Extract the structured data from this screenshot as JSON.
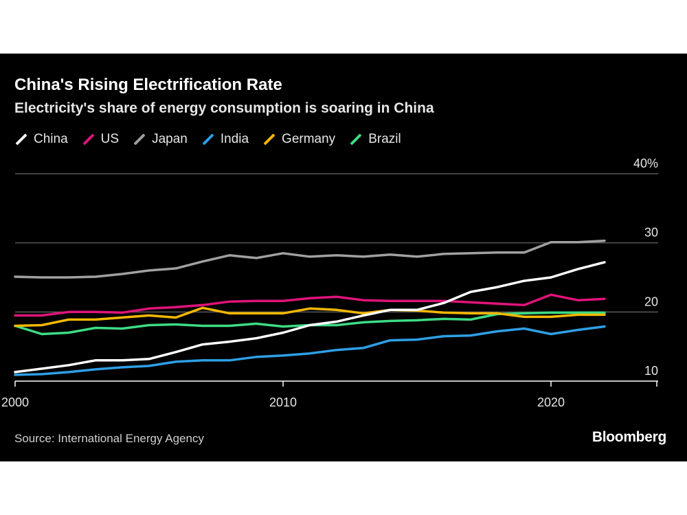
{
  "chart_data": {
    "type": "line",
    "title": "China's Rising Electrification Rate",
    "subtitle": "Electricity's share of energy consumption is soaring in China",
    "source": "Source: International Energy Agency",
    "brand": "Bloomberg",
    "x": [
      2000,
      2001,
      2002,
      2003,
      2004,
      2005,
      2006,
      2007,
      2008,
      2009,
      2010,
      2011,
      2012,
      2013,
      2014,
      2015,
      2016,
      2017,
      2018,
      2019,
      2020,
      2021,
      2022
    ],
    "xticks": [
      2000,
      2010,
      2020
    ],
    "xtick_labels": [
      "2000",
      "2010",
      "2020"
    ],
    "yticks": [
      10,
      20,
      30,
      40
    ],
    "ytick_labels": [
      "10",
      "20",
      "30",
      "40%"
    ],
    "ylim": [
      10,
      40
    ],
    "xlim": [
      2000,
      2024
    ],
    "grid": true,
    "legend_position": "top-left",
    "series": [
      {
        "name": "China",
        "color": "#ffffff",
        "values": [
          11.3,
          11.8,
          12.3,
          13.0,
          13.0,
          13.2,
          14.2,
          15.3,
          15.7,
          16.2,
          17.0,
          18.1,
          18.6,
          19.5,
          20.3,
          20.3,
          21.3,
          22.9,
          23.6,
          24.5,
          25.0,
          26.2,
          27.2
        ]
      },
      {
        "name": "US",
        "color": "#e0147a",
        "values": [
          19.5,
          19.5,
          20.0,
          20.0,
          19.9,
          20.5,
          20.7,
          21.0,
          21.5,
          21.6,
          21.6,
          22.0,
          22.2,
          21.7,
          21.6,
          21.6,
          21.6,
          21.4,
          21.2,
          21.0,
          22.5,
          21.7,
          21.9
        ]
      },
      {
        "name": "Japan",
        "color": "#a0a0a0",
        "values": [
          25.1,
          25.0,
          25.0,
          25.1,
          25.5,
          26.0,
          26.3,
          27.3,
          28.2,
          27.8,
          28.5,
          28.0,
          28.2,
          28.0,
          28.3,
          28.0,
          28.4,
          28.5,
          28.6,
          28.6,
          30.1,
          30.1,
          30.3
        ]
      },
      {
        "name": "India",
        "color": "#2e9fe6",
        "values": [
          10.9,
          11.0,
          11.3,
          11.7,
          12.0,
          12.2,
          12.8,
          13.0,
          13.0,
          13.5,
          13.7,
          14.0,
          14.5,
          14.8,
          15.9,
          16.0,
          16.5,
          16.6,
          17.2,
          17.6,
          16.8,
          17.4,
          17.9
        ]
      },
      {
        "name": "Germany",
        "color": "#f5b800",
        "values": [
          18.0,
          18.1,
          18.9,
          18.9,
          19.2,
          19.5,
          19.2,
          20.6,
          19.8,
          19.8,
          19.8,
          20.5,
          20.3,
          19.8,
          20.3,
          20.2,
          19.9,
          19.8,
          19.8,
          19.3,
          19.3,
          19.6,
          19.6
        ]
      },
      {
        "name": "Brazil",
        "color": "#3ddc84",
        "values": [
          18.0,
          16.8,
          17.0,
          17.7,
          17.6,
          18.1,
          18.2,
          18.0,
          18.0,
          18.3,
          17.9,
          18.1,
          18.1,
          18.5,
          18.7,
          18.8,
          19.0,
          18.9,
          19.7,
          19.8,
          19.9,
          19.9,
          19.9
        ]
      }
    ]
  }
}
